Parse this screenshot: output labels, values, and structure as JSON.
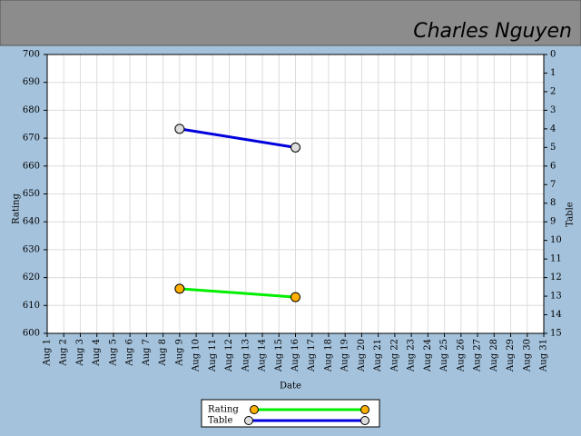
{
  "chart_data": {
    "type": "line",
    "title": "Charles Nguyen",
    "x_label": "Date",
    "y_label": "Rating",
    "y2_label": "Table",
    "categories": [
      "Aug 1",
      "Aug 2",
      "Aug 3",
      "Aug 4",
      "Aug 5",
      "Aug 6",
      "Aug 7",
      "Aug 8",
      "Aug 9",
      "Aug 10",
      "Aug 11",
      "Aug 12",
      "Aug 13",
      "Aug 14",
      "Aug 15",
      "Aug 16",
      "Aug 17",
      "Aug 18",
      "Aug 19",
      "Aug 20",
      "Aug 21",
      "Aug 22",
      "Aug 23",
      "Aug 24",
      "Aug 25",
      "Aug 26",
      "Aug 27",
      "Aug 28",
      "Aug 29",
      "Aug 30",
      "Aug 31"
    ],
    "series": [
      {
        "name": "Rating",
        "color": "#00ee00",
        "marker_color": "#ffb000",
        "values": [
          null,
          null,
          null,
          null,
          null,
          null,
          null,
          null,
          616,
          null,
          null,
          null,
          null,
          null,
          null,
          613,
          null,
          null,
          null,
          null,
          null,
          null,
          null,
          null,
          null,
          null,
          null,
          null,
          null,
          null,
          null
        ]
      },
      {
        "name": "Table",
        "color": "#0000dd",
        "marker_color": "#dddddd",
        "axis": "y2",
        "values": [
          null,
          null,
          null,
          null,
          null,
          null,
          null,
          null,
          4,
          null,
          null,
          null,
          null,
          null,
          null,
          5,
          null,
          null,
          null,
          null,
          null,
          null,
          null,
          null,
          null,
          null,
          null,
          null,
          null,
          null,
          null
        ]
      }
    ],
    "ylim": [
      600,
      700
    ],
    "yticks": [
      600,
      610,
      620,
      630,
      640,
      650,
      660,
      670,
      680,
      690,
      700
    ],
    "y2lim": [
      15,
      0
    ],
    "y2ticks": [
      0,
      1,
      2,
      3,
      4,
      5,
      6,
      7,
      8,
      9,
      10,
      11,
      12,
      13,
      14,
      15
    ],
    "grid": true
  }
}
